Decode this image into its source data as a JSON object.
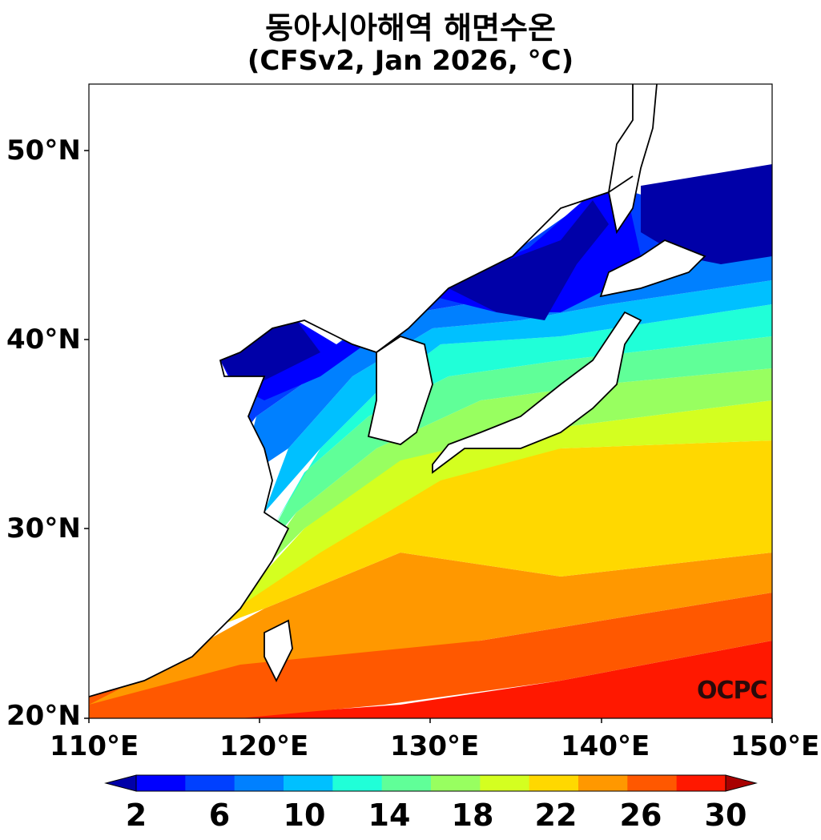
{
  "title": {
    "line1": "동아시아해역 해면수온",
    "line2": "(CFSv2, Jan 2026, °C)"
  },
  "axes": {
    "lat_ticks": [
      "50°N",
      "40°N",
      "30°N",
      "20°N"
    ],
    "lon_ticks": [
      "110°E",
      "120°E",
      "130°E",
      "140°E",
      "150°E"
    ]
  },
  "colorbar": {
    "labels": [
      "2",
      "6",
      "10",
      "14",
      "18",
      "22",
      "26",
      "30"
    ],
    "colors": [
      "#0000a8",
      "#0000ff",
      "#0040ff",
      "#0080ff",
      "#00c0ff",
      "#20ffd8",
      "#60ff98",
      "#98ff60",
      "#d4ff20",
      "#ffd800",
      "#ff9800",
      "#ff5800",
      "#ff1800",
      "#a80000"
    ]
  },
  "watermark": "OCPC"
}
